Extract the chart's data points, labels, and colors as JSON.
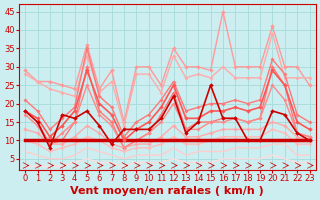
{
  "title": "",
  "xlabel": "Vent moyen/en rafales ( km/h )",
  "ylabel": "",
  "background_color": "#cceef0",
  "grid_color": "#aadddd",
  "xlim": [
    -0.5,
    23.5
  ],
  "ylim": [
    2,
    47
  ],
  "yticks": [
    5,
    10,
    15,
    20,
    25,
    30,
    35,
    40,
    45
  ],
  "xticks": [
    0,
    1,
    2,
    3,
    4,
    5,
    6,
    7,
    8,
    9,
    10,
    11,
    12,
    13,
    14,
    15,
    16,
    17,
    18,
    19,
    20,
    21,
    22,
    23
  ],
  "series": [
    {
      "x": [
        0,
        1,
        2,
        3,
        4,
        5,
        6,
        7,
        8,
        9,
        10,
        11,
        12,
        13,
        14,
        15,
        16,
        17,
        18,
        19,
        20,
        21,
        22,
        23
      ],
      "y": [
        18,
        15,
        8,
        17,
        16,
        18,
        14,
        9,
        13,
        13,
        13,
        16,
        22,
        12,
        15,
        25,
        16,
        16,
        10,
        10,
        18,
        17,
        12,
        10
      ],
      "color": "#cc0000",
      "linewidth": 1.2,
      "marker": "D",
      "markersize": 2.0,
      "zorder": 5
    },
    {
      "x": [
        0,
        1,
        2,
        3,
        4,
        5,
        6,
        7,
        8,
        9,
        10,
        11,
        12,
        13,
        14,
        15,
        16,
        17,
        18,
        19,
        20,
        21,
        22,
        23
      ],
      "y": [
        10,
        10,
        10,
        10,
        10,
        10,
        10,
        10,
        10,
        10,
        10,
        10,
        10,
        10,
        10,
        10,
        10,
        10,
        10,
        10,
        10,
        10,
        10,
        10
      ],
      "color": "#cc0000",
      "linewidth": 2.5,
      "marker": null,
      "markersize": 0,
      "zorder": 4
    },
    {
      "x": [
        0,
        1,
        2,
        3,
        4,
        5,
        6,
        7,
        8,
        9,
        10,
        11,
        12,
        13,
        14,
        15,
        16,
        17,
        18,
        19,
        20,
        21,
        22,
        23
      ],
      "y": [
        29,
        26,
        26,
        25,
        24,
        36,
        24,
        29,
        15,
        30,
        30,
        25,
        35,
        30,
        30,
        29,
        45,
        30,
        30,
        30,
        41,
        30,
        30,
        25
      ],
      "color": "#ff9999",
      "linewidth": 1.0,
      "marker": "D",
      "markersize": 2.0,
      "zorder": 3
    },
    {
      "x": [
        0,
        1,
        2,
        3,
        4,
        5,
        6,
        7,
        8,
        9,
        10,
        11,
        12,
        13,
        14,
        15,
        16,
        17,
        18,
        19,
        20,
        21,
        22,
        23
      ],
      "y": [
        18,
        15,
        9,
        10,
        15,
        30,
        18,
        15,
        8,
        10,
        12,
        17,
        23,
        13,
        15,
        15,
        16,
        16,
        15,
        16,
        30,
        25,
        12,
        11
      ],
      "color": "#ff7777",
      "linewidth": 1.0,
      "marker": "D",
      "markersize": 2.0,
      "zorder": 3
    },
    {
      "x": [
        0,
        1,
        2,
        3,
        4,
        5,
        6,
        7,
        8,
        9,
        10,
        11,
        12,
        13,
        14,
        15,
        16,
        17,
        18,
        19,
        20,
        21,
        22,
        23
      ],
      "y": [
        13,
        12,
        9,
        9,
        11,
        14,
        12,
        9,
        8,
        9,
        9,
        11,
        14,
        11,
        11,
        12,
        13,
        13,
        13,
        13,
        15,
        14,
        11,
        10
      ],
      "color": "#ffaaaa",
      "linewidth": 1.0,
      "marker": "D",
      "markersize": 2.0,
      "zorder": 3
    },
    {
      "x": [
        0,
        1,
        2,
        3,
        4,
        5,
        6,
        7,
        8,
        9,
        10,
        11,
        12,
        13,
        14,
        15,
        16,
        17,
        18,
        19,
        20,
        21,
        22,
        23
      ],
      "y": [
        17,
        14,
        9,
        12,
        15,
        25,
        17,
        14,
        8,
        10,
        12,
        15,
        20,
        13,
        13,
        15,
        15,
        16,
        15,
        16,
        25,
        21,
        12,
        11
      ],
      "color": "#ff8888",
      "linewidth": 1.0,
      "marker": "D",
      "markersize": 1.8,
      "zorder": 3
    },
    {
      "x": [
        0,
        1,
        2,
        3,
        4,
        5,
        6,
        7,
        8,
        9,
        10,
        11,
        12,
        13,
        14,
        15,
        16,
        17,
        18,
        19,
        20,
        21,
        22,
        23
      ],
      "y": [
        10,
        9,
        7,
        8,
        9,
        11,
        10,
        8,
        7,
        8,
        8,
        9,
        11,
        9,
        9,
        10,
        11,
        11,
        11,
        11,
        13,
        12,
        9,
        9
      ],
      "color": "#ffbbbb",
      "linewidth": 1.0,
      "marker": "D",
      "markersize": 1.8,
      "zorder": 3
    },
    {
      "x": [
        0,
        1,
        2,
        3,
        4,
        5,
        6,
        7,
        8,
        9,
        10,
        11,
        12,
        13,
        14,
        15,
        16,
        17,
        18,
        19,
        20,
        21,
        22,
        23
      ],
      "y": [
        7,
        6,
        5,
        5,
        6,
        8,
        7,
        6,
        5,
        6,
        6,
        6,
        8,
        6,
        7,
        7,
        7,
        8,
        8,
        8,
        9,
        9,
        6,
        6
      ],
      "color": "#ffcccc",
      "linewidth": 1.0,
      "marker": null,
      "markersize": 0,
      "zorder": 2
    },
    {
      "x": [
        0,
        1,
        2,
        3,
        4,
        5,
        6,
        7,
        8,
        9,
        10,
        11,
        12,
        13,
        14,
        15,
        16,
        17,
        18,
        19,
        20,
        21,
        22,
        23
      ],
      "y": [
        3,
        3,
        3,
        3,
        4,
        5,
        4,
        4,
        3,
        4,
        4,
        4,
        5,
        4,
        4,
        4,
        5,
        5,
        5,
        5,
        6,
        5,
        4,
        4
      ],
      "color": "#ffdddd",
      "linewidth": 1.0,
      "marker": null,
      "markersize": 0,
      "zorder": 2
    },
    {
      "x": [
        0,
        1,
        2,
        3,
        4,
        5,
        6,
        7,
        8,
        9,
        10,
        11,
        12,
        13,
        14,
        15,
        16,
        17,
        18,
        19,
        20,
        21,
        22,
        23
      ],
      "y": [
        18,
        16,
        11,
        14,
        18,
        29,
        20,
        17,
        10,
        13,
        15,
        19,
        25,
        16,
        16,
        18,
        18,
        19,
        18,
        19,
        29,
        25,
        15,
        13
      ],
      "color": "#ff5555",
      "linewidth": 1.2,
      "marker": "D",
      "markersize": 2.0,
      "zorder": 4
    },
    {
      "x": [
        0,
        1,
        2,
        3,
        4,
        5,
        6,
        7,
        8,
        9,
        10,
        11,
        12,
        13,
        14,
        15,
        16,
        17,
        18,
        19,
        20,
        21,
        22,
        23
      ],
      "y": [
        28,
        26,
        24,
        23,
        22,
        33,
        23,
        26,
        14,
        28,
        28,
        23,
        33,
        27,
        28,
        27,
        30,
        27,
        27,
        27,
        39,
        27,
        27,
        27
      ],
      "color": "#ffaaaa",
      "linewidth": 1.0,
      "marker": "D",
      "markersize": 1.8,
      "zorder": 3
    },
    {
      "x": [
        0,
        1,
        2,
        3,
        4,
        5,
        6,
        7,
        8,
        9,
        10,
        11,
        12,
        13,
        14,
        15,
        16,
        17,
        18,
        19,
        20,
        21,
        22,
        23
      ],
      "y": [
        21,
        18,
        13,
        16,
        19,
        35,
        22,
        19,
        11,
        15,
        17,
        21,
        26,
        18,
        19,
        20,
        20,
        21,
        20,
        21,
        32,
        28,
        17,
        15
      ],
      "color": "#ff7777",
      "linewidth": 1.0,
      "marker": "D",
      "markersize": 1.8,
      "zorder": 3
    }
  ],
  "arrow_color": "#cc0000",
  "xlabel_fontsize": 8,
  "tick_fontsize": 6,
  "tick_color": "#cc0000"
}
